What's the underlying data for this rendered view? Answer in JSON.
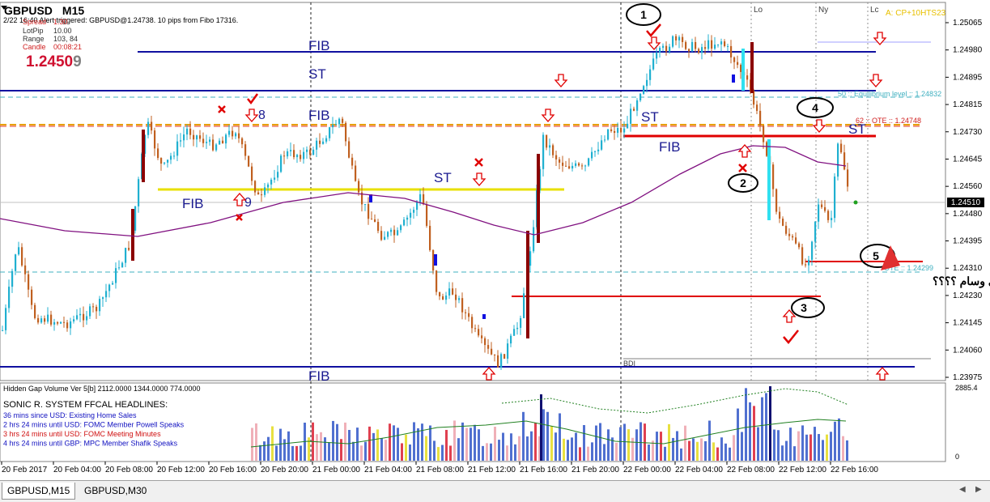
{
  "window": {
    "symbol_title": "GBPUSD,M15",
    "title_symbol": "GBPUSD",
    "title_tf": "M15"
  },
  "info_panel": {
    "alert": "2/22 16:40 Alert triggered: GBPUSD@1.24738.  10 pips from Fibo 17316.",
    "spread_label": "Spread",
    "spread_value": "1.30",
    "lotpip_label": "LotPip",
    "lotpip_value": "10.00",
    "range_label": "Range",
    "range_value": "103, 84",
    "candle_label": "Candle",
    "candle_value": "00:08:21",
    "big_price": "1.2450",
    "big_price_last": "9"
  },
  "top_right_label": "A: CP+10HTS23",
  "session_labels": [
    "Lo",
    "Ny",
    "Lc"
  ],
  "price_axis": {
    "ticks": [
      "1.25065",
      "1.24980",
      "1.24895",
      "1.24815",
      "1.24730",
      "1.24645",
      "1.24560",
      "1.24480",
      "1.24395",
      "1.24310",
      "1.24230",
      "1.24145",
      "1.24060",
      "1.23975"
    ],
    "current_price": "1.24510"
  },
  "time_axis": [
    "20 Feb 2017",
    "20 Feb 04:00",
    "20 Feb 08:00",
    "20 Feb 12:00",
    "20 Feb 16:00",
    "20 Feb 20:00",
    "21 Feb 00:00",
    "21 Feb 04:00",
    "21 Feb 08:00",
    "21 Feb 12:00",
    "21 Feb 16:00",
    "21 Feb 20:00",
    "22 Feb 00:00",
    "22 Feb 04:00",
    "22 Feb 08:00",
    "22 Feb 12:00",
    "22 Feb 16:00"
  ],
  "annotations": {
    "fib": "FIB",
    "st": "ST",
    "num8": "8",
    "num9": "9",
    "eq_level": "50 :: Equilibrium level :: 1.24832",
    "ote_level": "62 :: OTE :: 1.24748",
    "ote_low": "OTE :: 1.24299",
    "bdi": "BDI",
    "arabic_comment": "كيف نتصرف لو تخسر الصفقة اخي وسام ؟؟؟؟",
    "circles": [
      "1",
      "2",
      "3",
      "4",
      "5"
    ]
  },
  "volume_panel": {
    "title": "Hidden Gap Volume Ver 5[b] 2112.0000 1344.0000 774.0000",
    "max_label": "2885.4",
    "zero_label": "0",
    "headline_title": "SONIC R. SYSTEM  FFCAL HEADLINES:",
    "headlines": [
      {
        "text": "36 mins since USD: Existing Home Sales",
        "color": "#1010c0"
      },
      {
        "text": "2 hrs 24 mins until USD: FOMC Member Powell Speaks",
        "color": "#1010c0"
      },
      {
        "text": "3 hrs 24 mins until USD: FOMC Meeting Minutes",
        "color": "#d01010"
      },
      {
        "text": "4 hrs 24 mins until GBP: MPC Member Shafik Speaks",
        "color": "#1010c0"
      }
    ]
  },
  "tabs": [
    {
      "label": "GBPUSD,M15",
      "active": true
    },
    {
      "label": "GBPUSD,M30",
      "active": false
    }
  ],
  "colors": {
    "bull": "#20b0d0",
    "bear": "#c06020",
    "fib_line": "#1010a0",
    "red_line": "#e00000",
    "yellow_line": "#e8e000",
    "ma_line": "#801080",
    "grid": "#303030"
  }
}
